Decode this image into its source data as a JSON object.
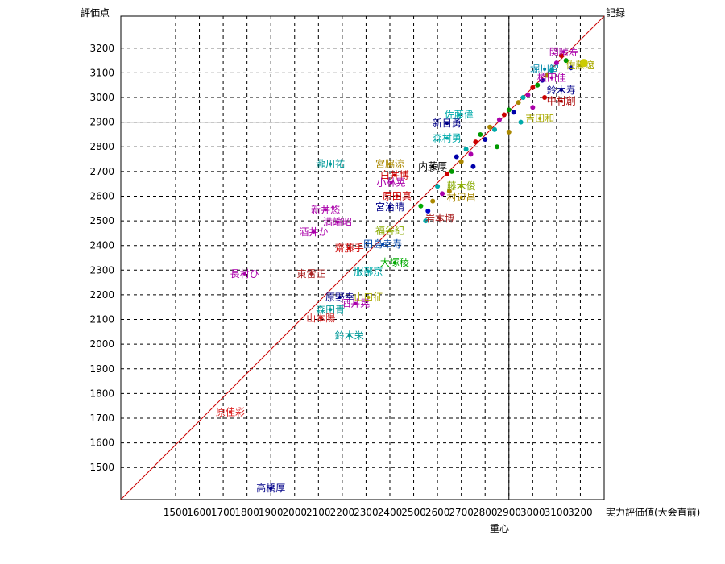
{
  "chart_data": {
    "type": "scatter",
    "title": "",
    "xlabel": "実力評価値(大会直前)",
    "ylabel": "評価点",
    "x_ticks": [
      1500,
      1600,
      1700,
      1800,
      1900,
      2000,
      2100,
      2200,
      2300,
      2400,
      2500,
      2600,
      2700,
      2800,
      2900,
      3000,
      3100,
      3200
    ],
    "x_tick_labels": [
      "1500",
      "1600",
      "1700",
      "1800",
      "1900",
      "2000",
      "2100",
      "2200",
      "2300",
      "2400",
      "2500",
      "2600",
      "2700",
      "2800",
      "2900",
      "3000",
      "3100",
      "3200"
    ],
    "y_ticks": [
      1500,
      1600,
      1700,
      1800,
      1900,
      2000,
      2100,
      2200,
      2300,
      2400,
      2500,
      2600,
      2700,
      2800,
      2900,
      3000,
      3100,
      3200
    ],
    "y_tick_labels": [
      "1500",
      "1600",
      "1700",
      "1800",
      "1900",
      "2000",
      "2100",
      "2200",
      "2300",
      "2400",
      "2500",
      "2600",
      "2700",
      "2800",
      "2900",
      "3000",
      "3100",
      "3200"
    ],
    "xlim": [
      1270,
      3300
    ],
    "ylim": [
      1370,
      3330
    ],
    "grid": true,
    "corner_label": "記録",
    "centroid_label": "重心",
    "centroid": {
      "x": 2900,
      "y": 2900
    },
    "diagonal": {
      "from": [
        1270,
        1370
      ],
      "to": [
        3300,
        3330
      ],
      "color": "#cc0000"
    },
    "marked_point": {
      "x": 3215,
      "y": 3140,
      "color": "#cccc00"
    },
    "points": [
      {
        "label": "高橋厚",
        "x": 1900,
        "y": 1415,
        "color": "#000088"
      },
      {
        "label": "原佳彩",
        "x": 1730,
        "y": 1725,
        "color": "#dd2222"
      },
      {
        "label": "長村ひ",
        "x": 1790,
        "y": 2285,
        "color": "#aa00aa"
      },
      {
        "label": "東雷正",
        "x": 2070,
        "y": 2285,
        "color": "#aa2222"
      },
      {
        "label": "瀧川祐",
        "x": 2150,
        "y": 2730,
        "color": "#009999"
      },
      {
        "label": "新井悠",
        "x": 2130,
        "y": 2545,
        "color": "#aa00aa"
      },
      {
        "label": "満端昭",
        "x": 2180,
        "y": 2495,
        "color": "#aa00aa"
      },
      {
        "label": "酒井か",
        "x": 2080,
        "y": 2455,
        "color": "#aa00aa"
      },
      {
        "label": "齋藤手",
        "x": 2230,
        "y": 2390,
        "color": "#cc0000"
      },
      {
        "label": "田島幸寿",
        "x": 2370,
        "y": 2405,
        "color": "#0044aa"
      },
      {
        "label": "原野幸",
        "x": 2190,
        "y": 2190,
        "color": "#000088"
      },
      {
        "label": "酒井晃",
        "x": 2255,
        "y": 2165,
        "color": "#aa00aa"
      },
      {
        "label": "山口征",
        "x": 2310,
        "y": 2190,
        "color": "#aaaa00"
      },
      {
        "label": "森田青",
        "x": 2150,
        "y": 2140,
        "color": "#009999"
      },
      {
        "label": "山本陽",
        "x": 2110,
        "y": 2105,
        "color": "#cc2222"
      },
      {
        "label": "鈴木栄",
        "x": 2230,
        "y": 2035,
        "color": "#009999"
      },
      {
        "label": "服部京",
        "x": 2310,
        "y": 2295,
        "color": "#00aaaa"
      },
      {
        "label": "大塚稜",
        "x": 2420,
        "y": 2330,
        "color": "#00aa00"
      },
      {
        "label": "福谷紀",
        "x": 2400,
        "y": 2460,
        "color": "#88aa00"
      },
      {
        "label": "宮脇涼",
        "x": 2400,
        "y": 2730,
        "color": "#aa8800"
      },
      {
        "label": "白井博",
        "x": 2420,
        "y": 2685,
        "color": "#cc0000"
      },
      {
        "label": "小林晃",
        "x": 2405,
        "y": 2655,
        "color": "#aa00aa"
      },
      {
        "label": "宮治晴",
        "x": 2400,
        "y": 2555,
        "color": "#000088"
      },
      {
        "label": "原田真",
        "x": 2430,
        "y": 2600,
        "color": "#cc0000"
      },
      {
        "label": "内藤厚",
        "x": 2580,
        "y": 2720,
        "color": "#000000"
      },
      {
        "label": "森村勇",
        "x": 2640,
        "y": 2835,
        "color": "#00aaaa"
      },
      {
        "label": "新目勇",
        "x": 2640,
        "y": 2895,
        "color": "#000088"
      },
      {
        "label": "佐藤偉",
        "x": 2690,
        "y": 2930,
        "color": "#00aaaa"
      },
      {
        "label": "藤木俊",
        "x": 2700,
        "y": 2640,
        "color": "#88aa00"
      },
      {
        "label": "村辺昌",
        "x": 2700,
        "y": 2595,
        "color": "#aa8800"
      },
      {
        "label": "岩本博",
        "x": 2610,
        "y": 2510,
        "color": "#aa2222"
      },
      {
        "label": "佐藤遼",
        "x": 3200,
        "y": 3130,
        "color": "#aaaa00"
      },
      {
        "label": "関晴寿",
        "x": 3130,
        "y": 3185,
        "color": "#aa00aa"
      },
      {
        "label": "植田佳",
        "x": 3080,
        "y": 3080,
        "color": "#aa00aa"
      },
      {
        "label": "堀川智",
        "x": 3050,
        "y": 3115,
        "color": "#0088aa"
      },
      {
        "label": "中村創",
        "x": 3120,
        "y": 2985,
        "color": "#aa0000"
      },
      {
        "label": "鈴木寿",
        "x": 3120,
        "y": 3030,
        "color": "#000088"
      },
      {
        "label": "吉田和",
        "x": 3030,
        "y": 2915,
        "color": "#aaaa00"
      }
    ],
    "cluster_points": [
      {
        "x": 2530,
        "y": 2560,
        "color": "#00aa00"
      },
      {
        "x": 2560,
        "y": 2540,
        "color": "#0000cc"
      },
      {
        "x": 2580,
        "y": 2580,
        "color": "#aa8800"
      },
      {
        "x": 2600,
        "y": 2640,
        "color": "#00aaaa"
      },
      {
        "x": 2620,
        "y": 2610,
        "color": "#aa00aa"
      },
      {
        "x": 2640,
        "y": 2690,
        "color": "#cc0000"
      },
      {
        "x": 2660,
        "y": 2700,
        "color": "#009900"
      },
      {
        "x": 2680,
        "y": 2760,
        "color": "#0000aa"
      },
      {
        "x": 2700,
        "y": 2740,
        "color": "#aa8800"
      },
      {
        "x": 2720,
        "y": 2790,
        "color": "#00aaaa"
      },
      {
        "x": 2740,
        "y": 2770,
        "color": "#aa00aa"
      },
      {
        "x": 2760,
        "y": 2820,
        "color": "#cc0000"
      },
      {
        "x": 2780,
        "y": 2850,
        "color": "#009900"
      },
      {
        "x": 2800,
        "y": 2830,
        "color": "#0000aa"
      },
      {
        "x": 2820,
        "y": 2880,
        "color": "#aa8800"
      },
      {
        "x": 2840,
        "y": 2870,
        "color": "#00aaaa"
      },
      {
        "x": 2860,
        "y": 2910,
        "color": "#aa00aa"
      },
      {
        "x": 2880,
        "y": 2930,
        "color": "#cc0000"
      },
      {
        "x": 2900,
        "y": 2950,
        "color": "#009900"
      },
      {
        "x": 2920,
        "y": 2940,
        "color": "#0000aa"
      },
      {
        "x": 2940,
        "y": 2980,
        "color": "#aa8800"
      },
      {
        "x": 2960,
        "y": 3000,
        "color": "#00aaaa"
      },
      {
        "x": 2980,
        "y": 3010,
        "color": "#aa00aa"
      },
      {
        "x": 3000,
        "y": 3040,
        "color": "#cc0000"
      },
      {
        "x": 3020,
        "y": 3050,
        "color": "#009900"
      },
      {
        "x": 3040,
        "y": 3070,
        "color": "#0000aa"
      },
      {
        "x": 3060,
        "y": 3090,
        "color": "#aa8800"
      },
      {
        "x": 3080,
        "y": 3110,
        "color": "#00aaaa"
      },
      {
        "x": 3100,
        "y": 3140,
        "color": "#aa00aa"
      },
      {
        "x": 3120,
        "y": 3170,
        "color": "#cc0000"
      },
      {
        "x": 3140,
        "y": 3150,
        "color": "#009900"
      },
      {
        "x": 3160,
        "y": 3120,
        "color": "#0000aa"
      },
      {
        "x": 2900,
        "y": 2860,
        "color": "#aa8800"
      },
      {
        "x": 2950,
        "y": 2900,
        "color": "#00aaaa"
      },
      {
        "x": 3000,
        "y": 2960,
        "color": "#aa00aa"
      },
      {
        "x": 3050,
        "y": 3000,
        "color": "#cc0000"
      },
      {
        "x": 2850,
        "y": 2800,
        "color": "#009900"
      },
      {
        "x": 2750,
        "y": 2720,
        "color": "#0000aa"
      },
      {
        "x": 2650,
        "y": 2620,
        "color": "#aa8800"
      },
      {
        "x": 2550,
        "y": 2500,
        "color": "#00aaaa"
      }
    ]
  }
}
